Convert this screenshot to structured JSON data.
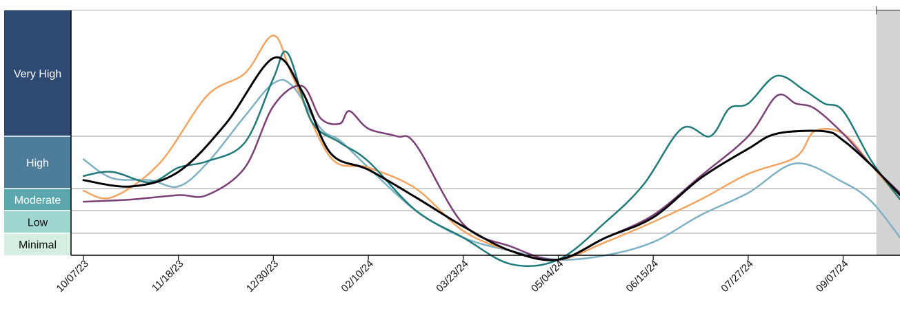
{
  "chart_data": {
    "type": "line",
    "x_ticks": [
      "10/07/23",
      "11/18/23",
      "12/30/23",
      "02/10/24",
      "03/23/24",
      "05/04/24",
      "06/15/24",
      "07/27/24",
      "09/07/24"
    ],
    "levels": [
      {
        "label": "Very High",
        "color": "#2e4a73",
        "text_color": "#ffffff"
      },
      {
        "label": "High",
        "color": "#4d7d99",
        "text_color": "#ffffff"
      },
      {
        "label": "Moderate",
        "color": "#5aa8ad",
        "text_color": "#ffffff"
      },
      {
        "label": "Low",
        "color": "#9fd6cf",
        "text_color": "#111111"
      },
      {
        "label": "Minimal",
        "color": "#d4efe2",
        "text_color": "#111111"
      }
    ],
    "y_scale_units": "relative level (0 = floor, 0.5 = Minimal/Low, 1.5 = Low/Moderate, 2.5 = Moderate/High, 5 = High/Very High, 10 = top)",
    "shaded_region_start_tick_fraction": 8.35,
    "series": [
      {
        "color": "#000000",
        "points": [
          [
            0,
            2.9
          ],
          [
            0.5,
            2.6
          ],
          [
            1,
            3.3
          ],
          [
            1.5,
            5.5
          ],
          [
            2,
            8.1
          ],
          [
            2.3,
            6.8
          ],
          [
            2.6,
            4.2
          ],
          [
            3,
            3.4
          ],
          [
            3.5,
            2.1
          ],
          [
            4,
            0.8
          ],
          [
            4.5,
            0.1
          ],
          [
            5,
            -0.1
          ],
          [
            5.5,
            0.4
          ],
          [
            6,
            1.2
          ],
          [
            6.5,
            3.0
          ],
          [
            7,
            4.4
          ],
          [
            7.3,
            5.1
          ],
          [
            7.8,
            5.2
          ],
          [
            8,
            4.8
          ],
          [
            8.3,
            3.6
          ],
          [
            8.6,
            2.2
          ]
        ]
      },
      {
        "color": "#f4a460",
        "points": [
          [
            0,
            2.4
          ],
          [
            0.3,
            2.1
          ],
          [
            0.8,
            3.7
          ],
          [
            1.3,
            6.6
          ],
          [
            1.7,
            7.5
          ],
          [
            2,
            9.0
          ],
          [
            2.2,
            7.4
          ],
          [
            2.6,
            4.0
          ],
          [
            3,
            3.5
          ],
          [
            3.5,
            2.5
          ],
          [
            4,
            0.6
          ],
          [
            4.5,
            0.1
          ],
          [
            5,
            -0.1
          ],
          [
            5.5,
            0.3
          ],
          [
            6,
            1.0
          ],
          [
            6.5,
            2.0
          ],
          [
            7,
            3.2
          ],
          [
            7.5,
            4.0
          ],
          [
            7.7,
            5.2
          ],
          [
            8,
            5.1
          ],
          [
            8.3,
            3.6
          ],
          [
            8.6,
            2.0
          ]
        ]
      },
      {
        "color": "#7b3f78",
        "points": [
          [
            0,
            1.9
          ],
          [
            0.5,
            2.0
          ],
          [
            1,
            2.2
          ],
          [
            1.3,
            2.2
          ],
          [
            1.7,
            3.5
          ],
          [
            2,
            6.2
          ],
          [
            2.3,
            7.0
          ],
          [
            2.5,
            5.7
          ],
          [
            2.7,
            5.5
          ],
          [
            2.8,
            6.0
          ],
          [
            3,
            5.3
          ],
          [
            3.3,
            5.0
          ],
          [
            3.5,
            4.6
          ],
          [
            4,
            0.9
          ],
          [
            4.5,
            0.2
          ],
          [
            5,
            -0.1
          ],
          [
            5.5,
            0.4
          ],
          [
            6,
            1.3
          ],
          [
            6.5,
            3.1
          ],
          [
            7,
            5.0
          ],
          [
            7.3,
            6.6
          ],
          [
            7.5,
            6.3
          ],
          [
            7.7,
            6.1
          ],
          [
            8,
            5.1
          ],
          [
            8.3,
            3.6
          ],
          [
            8.6,
            2.3
          ]
        ]
      },
      {
        "color": "#1f7a7a",
        "points": [
          [
            0,
            3.1
          ],
          [
            0.3,
            3.3
          ],
          [
            0.7,
            2.8
          ],
          [
            1,
            3.5
          ],
          [
            1.3,
            3.8
          ],
          [
            1.7,
            4.7
          ],
          [
            2,
            7.3
          ],
          [
            2.15,
            8.3
          ],
          [
            2.4,
            5.6
          ],
          [
            2.7,
            4.7
          ],
          [
            3,
            3.8
          ],
          [
            3.5,
            1.5
          ],
          [
            4,
            0.4
          ],
          [
            4.5,
            -0.2
          ],
          [
            5,
            -0.1
          ],
          [
            5.5,
            1.0
          ],
          [
            5.9,
            2.7
          ],
          [
            6.3,
            5.3
          ],
          [
            6.6,
            5.0
          ],
          [
            6.8,
            6.1
          ],
          [
            7,
            6.3
          ],
          [
            7.3,
            7.4
          ],
          [
            7.6,
            6.8
          ],
          [
            7.8,
            6.3
          ],
          [
            8,
            6.0
          ],
          [
            8.3,
            3.8
          ],
          [
            8.6,
            2.0
          ]
        ]
      },
      {
        "color": "#7eb1c4",
        "points": [
          [
            0,
            3.9
          ],
          [
            0.3,
            3.0
          ],
          [
            0.7,
            2.9
          ],
          [
            1,
            2.6
          ],
          [
            1.3,
            3.7
          ],
          [
            1.7,
            5.8
          ],
          [
            2,
            7.1
          ],
          [
            2.2,
            7.0
          ],
          [
            2.5,
            5.3
          ],
          [
            2.7,
            4.8
          ],
          [
            3,
            3.5
          ],
          [
            3.5,
            1.5
          ],
          [
            4,
            0.4
          ],
          [
            4.5,
            0.1
          ],
          [
            5,
            -0.1
          ],
          [
            5.5,
            0
          ],
          [
            6,
            0.3
          ],
          [
            6.5,
            1.3
          ],
          [
            7,
            2.3
          ],
          [
            7.5,
            3.7
          ],
          [
            8,
            2.8
          ],
          [
            8.3,
            1.9
          ],
          [
            8.6,
            0.4
          ]
        ]
      }
    ]
  }
}
